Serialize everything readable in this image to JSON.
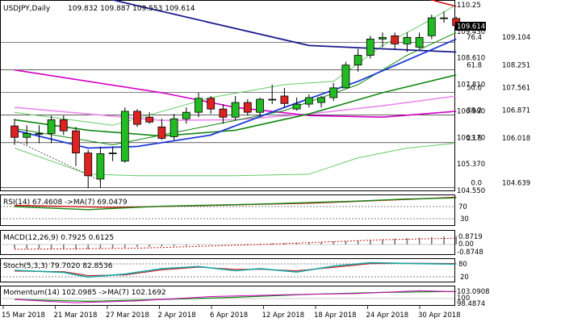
{
  "main_header": {
    "symbol_tf": "USDJPY,Daily",
    "ohlc": "109.832 109.887 109.553 109.614"
  },
  "current_price": "109.614",
  "price_axis_labels": [
    "110.25",
    "109.430",
    "108.610",
    "107.810",
    "106.990",
    "106.170",
    "105.370",
    "104.550"
  ],
  "fib_levels": [
    {
      "pct": "76.4",
      "price": "109.104"
    },
    {
      "pct": "61.8",
      "price": "108.251"
    },
    {
      "pct": "50.0",
      "price": "107.561"
    },
    {
      "pct": "38.2",
      "price": "106.871"
    },
    {
      "pct": "23.6",
      "price": "106.018"
    },
    {
      "pct": "0.0",
      "price": "104.639"
    }
  ],
  "dates": [
    "15 Mar 2018",
    "21 Mar 2018",
    "27 Mar 2018",
    "2 Apr 2018",
    "6 Apr 2018",
    "12 Apr 2018",
    "18 Apr 2018",
    "24 Apr 2018",
    "30 Apr 2018"
  ],
  "indicators": {
    "rsi": {
      "label": "RSI(14) 67.4608 ->MA(7) 69.0479",
      "axis": [
        "70",
        "30"
      ]
    },
    "macd": {
      "label": "MACD(12,26,9) 0.7925 0.6125",
      "axis": [
        "0.8719",
        "0.00",
        "-0.8748"
      ]
    },
    "stoch": {
      "label": "Stoch(5,3,3) 79.7020 82.8536",
      "axis": [
        "80",
        "20"
      ]
    },
    "momentum": {
      "label": "Momentum(14) 102.0985 ->MA(7) 102.1692",
      "axis": [
        "103.0908",
        "100",
        "98.4874"
      ]
    }
  },
  "colors": {
    "bull": "#22bb22",
    "bear": "#dd2222",
    "ma_red": "#cc1111",
    "ma_navy": "#1a1a8c",
    "ma_magenta": "#d400c8",
    "ma_green": "#118811",
    "bb_light": "#66cc66",
    "blue": "#1f3ad8",
    "pink": "#ee88ee",
    "teal": "#1aa3a3"
  },
  "chart_data": {
    "type": "candlestick",
    "symbol": "USDJPY",
    "timeframe": "Daily",
    "candles": [
      {
        "o": 106.53,
        "h": 106.75,
        "l": 105.95,
        "c": 106.18
      },
      {
        "o": 106.18,
        "h": 106.55,
        "l": 105.95,
        "c": 106.3
      },
      {
        "o": 106.3,
        "h": 106.55,
        "l": 106.0,
        "c": 106.3
      },
      {
        "o": 106.3,
        "h": 106.85,
        "l": 106.0,
        "c": 106.72
      },
      {
        "o": 106.72,
        "h": 106.85,
        "l": 106.25,
        "c": 106.38
      },
      {
        "o": 106.38,
        "h": 106.5,
        "l": 105.3,
        "c": 105.7
      },
      {
        "o": 105.7,
        "h": 105.8,
        "l": 104.62,
        "c": 105.0
      },
      {
        "o": 104.9,
        "h": 105.9,
        "l": 104.63,
        "c": 105.68
      },
      {
        "o": 105.68,
        "h": 105.9,
        "l": 105.45,
        "c": 105.7
      },
      {
        "o": 105.45,
        "h": 107.1,
        "l": 105.4,
        "c": 106.98
      },
      {
        "o": 106.98,
        "h": 107.05,
        "l": 106.5,
        "c": 106.58
      },
      {
        "o": 106.8,
        "h": 106.95,
        "l": 106.6,
        "c": 106.65
      },
      {
        "o": 106.5,
        "h": 106.75,
        "l": 106.1,
        "c": 106.15
      },
      {
        "o": 106.2,
        "h": 106.9,
        "l": 106.1,
        "c": 106.75
      },
      {
        "o": 106.75,
        "h": 107.1,
        "l": 106.6,
        "c": 106.95
      },
      {
        "o": 106.95,
        "h": 107.55,
        "l": 106.8,
        "c": 107.38
      },
      {
        "o": 107.38,
        "h": 107.45,
        "l": 106.9,
        "c": 107.05
      },
      {
        "o": 107.05,
        "h": 107.2,
        "l": 106.6,
        "c": 106.8
      },
      {
        "o": 106.8,
        "h": 107.45,
        "l": 106.7,
        "c": 107.25
      },
      {
        "o": 107.25,
        "h": 107.35,
        "l": 106.85,
        "c": 106.95
      },
      {
        "o": 106.95,
        "h": 107.4,
        "l": 106.85,
        "c": 107.35
      },
      {
        "o": 107.35,
        "h": 107.8,
        "l": 107.2,
        "c": 107.35
      },
      {
        "o": 107.45,
        "h": 107.7,
        "l": 107.1,
        "c": 107.22
      },
      {
        "o": 107.05,
        "h": 107.4,
        "l": 107.0,
        "c": 107.2
      },
      {
        "o": 107.2,
        "h": 107.5,
        "l": 107.1,
        "c": 107.4
      },
      {
        "o": 107.25,
        "h": 107.45,
        "l": 107.1,
        "c": 107.4
      },
      {
        "o": 107.4,
        "h": 107.85,
        "l": 107.3,
        "c": 107.7
      },
      {
        "o": 107.7,
        "h": 108.5,
        "l": 107.7,
        "c": 108.4
      },
      {
        "o": 108.4,
        "h": 108.9,
        "l": 108.2,
        "c": 108.7
      },
      {
        "o": 108.7,
        "h": 109.3,
        "l": 108.6,
        "c": 109.2
      },
      {
        "o": 109.2,
        "h": 109.4,
        "l": 108.95,
        "c": 109.25
      },
      {
        "o": 109.3,
        "h": 109.4,
        "l": 108.9,
        "c": 109.05
      },
      {
        "o": 109.05,
        "h": 109.4,
        "l": 108.8,
        "c": 109.25
      },
      {
        "o": 108.95,
        "h": 109.4,
        "l": 108.9,
        "c": 109.25
      },
      {
        "o": 109.3,
        "h": 109.95,
        "l": 109.2,
        "c": 109.85
      },
      {
        "o": 109.85,
        "h": 110.05,
        "l": 109.7,
        "c": 109.85
      },
      {
        "o": 109.832,
        "h": 109.887,
        "l": 109.553,
        "c": 109.614
      }
    ],
    "ma_red": [
      {
        "i": 0,
        "v": 112.8
      },
      {
        "i": 12,
        "v": 112.0
      },
      {
        "i": 24,
        "v": 111.2
      },
      {
        "i": 32,
        "v": 110.6
      },
      {
        "i": 36,
        "v": 110.2
      }
    ],
    "ma_navy": [
      {
        "i": 0,
        "v": 110.8
      },
      {
        "i": 8,
        "v": 110.4
      },
      {
        "i": 16,
        "v": 109.7
      },
      {
        "i": 24,
        "v": 109.0
      },
      {
        "i": 30,
        "v": 108.9
      },
      {
        "i": 36,
        "v": 108.8
      }
    ],
    "ma_magenta": [
      {
        "i": 0,
        "v": 108.25
      },
      {
        "i": 6,
        "v": 107.9
      },
      {
        "i": 12,
        "v": 107.55
      },
      {
        "i": 18,
        "v": 107.1
      },
      {
        "i": 24,
        "v": 106.85
      },
      {
        "i": 30,
        "v": 106.8
      },
      {
        "i": 36,
        "v": 106.98
      }
    ],
    "ma_green": [
      {
        "i": 0,
        "v": 106.72
      },
      {
        "i": 6,
        "v": 106.4
      },
      {
        "i": 12,
        "v": 106.22
      },
      {
        "i": 18,
        "v": 106.4
      },
      {
        "i": 24,
        "v": 106.9
      },
      {
        "i": 30,
        "v": 107.55
      },
      {
        "i": 36,
        "v": 108.1
      }
    ],
    "ma_pink": [
      {
        "i": 0,
        "v": 107.1
      },
      {
        "i": 6,
        "v": 106.9
      },
      {
        "i": 12,
        "v": 106.7
      },
      {
        "i": 18,
        "v": 106.72
      },
      {
        "i": 24,
        "v": 106.9
      },
      {
        "i": 30,
        "v": 107.15
      },
      {
        "i": 36,
        "v": 107.45
      }
    ],
    "ma_blue": [
      {
        "i": 0,
        "v": 106.4
      },
      {
        "i": 6,
        "v": 105.85
      },
      {
        "i": 10,
        "v": 105.9
      },
      {
        "i": 16,
        "v": 106.25
      },
      {
        "i": 22,
        "v": 107.1
      },
      {
        "i": 28,
        "v": 107.9
      },
      {
        "i": 36,
        "v": 109.2
      }
    ],
    "bb_upper": [
      {
        "i": 0,
        "v": 106.95
      },
      {
        "i": 8,
        "v": 106.55
      },
      {
        "i": 16,
        "v": 107.4
      },
      {
        "i": 22,
        "v": 107.8
      },
      {
        "i": 26,
        "v": 107.9
      },
      {
        "i": 30,
        "v": 109.0
      },
      {
        "i": 33,
        "v": 109.6
      },
      {
        "i": 36,
        "v": 110.25
      }
    ],
    "bb_mid": [
      {
        "i": 0,
        "v": 106.45
      },
      {
        "i": 8,
        "v": 105.95
      },
      {
        "i": 16,
        "v": 106.55
      },
      {
        "i": 22,
        "v": 107.0
      },
      {
        "i": 28,
        "v": 107.8
      },
      {
        "i": 32,
        "v": 108.7
      },
      {
        "i": 36,
        "v": 109.4
      }
    ],
    "bb_lower": [
      {
        "i": 0,
        "v": 105.85
      },
      {
        "i": 6,
        "v": 105.05
      },
      {
        "i": 10,
        "v": 105.0
      },
      {
        "i": 18,
        "v": 105.0
      },
      {
        "i": 24,
        "v": 105.05
      },
      {
        "i": 28,
        "v": 105.55
      },
      {
        "i": 32,
        "v": 105.85
      },
      {
        "i": 36,
        "v": 106.0
      }
    ],
    "trend_dotted": [
      {
        "i": 0,
        "v": 106.1
      },
      {
        "i": 7,
        "v": 104.85
      }
    ],
    "rsi": [
      {
        "i": 0,
        "v": 47
      },
      {
        "i": 6,
        "v": 40
      },
      {
        "i": 12,
        "v": 48
      },
      {
        "i": 20,
        "v": 53
      },
      {
        "i": 28,
        "v": 60
      },
      {
        "i": 32,
        "v": 65
      },
      {
        "i": 36,
        "v": 67.46
      }
    ],
    "rsi_ma": [
      {
        "i": 0,
        "v": 50
      },
      {
        "i": 8,
        "v": 45
      },
      {
        "i": 16,
        "v": 50
      },
      {
        "i": 24,
        "v": 55
      },
      {
        "i": 32,
        "v": 64
      },
      {
        "i": 36,
        "v": 69.05
      }
    ],
    "macd_hist": [
      -0.38,
      -0.4,
      -0.42,
      -0.44,
      -0.46,
      -0.48,
      -0.45,
      -0.4,
      -0.35,
      -0.3,
      -0.25,
      -0.22,
      -0.18,
      -0.15,
      -0.12,
      -0.08,
      -0.05,
      -0.02,
      0.02,
      0.05,
      0.08,
      0.1,
      0.13,
      0.16,
      0.2,
      0.24,
      0.28,
      0.32,
      0.38,
      0.44,
      0.5,
      0.55,
      0.6,
      0.65,
      0.7,
      0.76,
      0.79
    ],
    "macd_signal": [
      {
        "i": 0,
        "v": -0.45
      },
      {
        "i": 10,
        "v": -0.35
      },
      {
        "i": 20,
        "v": 0.0
      },
      {
        "i": 30,
        "v": 0.45
      },
      {
        "i": 36,
        "v": 0.61
      }
    ],
    "stoch_k": [
      {
        "i": 0,
        "v": 50
      },
      {
        "i": 4,
        "v": 40
      },
      {
        "i": 6,
        "v": 18
      },
      {
        "i": 9,
        "v": 32
      },
      {
        "i": 12,
        "v": 58
      },
      {
        "i": 15,
        "v": 68
      },
      {
        "i": 18,
        "v": 48
      },
      {
        "i": 20,
        "v": 58
      },
      {
        "i": 23,
        "v": 42
      },
      {
        "i": 26,
        "v": 70
      },
      {
        "i": 29,
        "v": 86
      },
      {
        "i": 33,
        "v": 82
      },
      {
        "i": 36,
        "v": 79.7
      }
    ],
    "stoch_d": [
      {
        "i": 0,
        "v": 46
      },
      {
        "i": 4,
        "v": 44
      },
      {
        "i": 6,
        "v": 25
      },
      {
        "i": 9,
        "v": 28
      },
      {
        "i": 12,
        "v": 52
      },
      {
        "i": 15,
        "v": 65
      },
      {
        "i": 18,
        "v": 55
      },
      {
        "i": 20,
        "v": 55
      },
      {
        "i": 23,
        "v": 48
      },
      {
        "i": 26,
        "v": 64
      },
      {
        "i": 29,
        "v": 82
      },
      {
        "i": 33,
        "v": 84
      },
      {
        "i": 36,
        "v": 82.85
      }
    ],
    "momentum": [
      {
        "i": 0,
        "v": 100.0
      },
      {
        "i": 5,
        "v": 99.1
      },
      {
        "i": 10,
        "v": 99.6
      },
      {
        "i": 16,
        "v": 100.8
      },
      {
        "i": 22,
        "v": 101.3
      },
      {
        "i": 28,
        "v": 101.6
      },
      {
        "i": 33,
        "v": 102.4
      },
      {
        "i": 36,
        "v": 102.1
      }
    ],
    "momentum_ma": [
      {
        "i": 0,
        "v": 100.0
      },
      {
        "i": 6,
        "v": 99.5
      },
      {
        "i": 12,
        "v": 100.0
      },
      {
        "i": 18,
        "v": 100.6
      },
      {
        "i": 24,
        "v": 101.4
      },
      {
        "i": 30,
        "v": 101.9
      },
      {
        "i": 36,
        "v": 102.17
      }
    ]
  }
}
